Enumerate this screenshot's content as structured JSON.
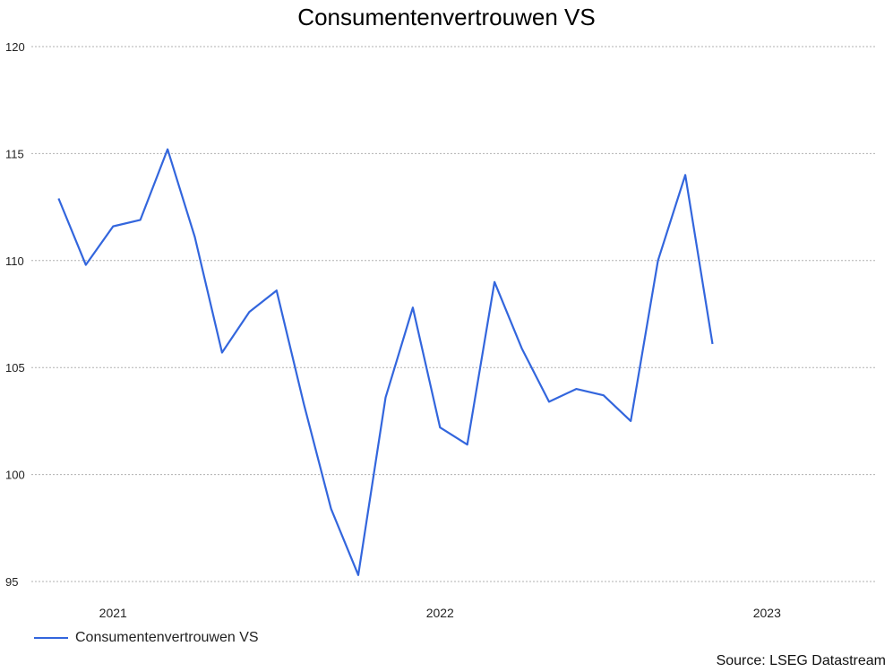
{
  "chart_data": {
    "type": "line",
    "title": "Consumentenvertrouwen VS",
    "xlabel": "",
    "ylabel": "",
    "ylim": [
      95,
      120
    ],
    "yticks": [
      95,
      100,
      105,
      110,
      115,
      120
    ],
    "xlim": [
      "2020-10",
      "2023-05"
    ],
    "xticks": [
      {
        "label": "2021",
        "date": "2021-01"
      },
      {
        "label": "2022",
        "date": "2022-01"
      },
      {
        "label": "2023",
        "date": "2023-01"
      }
    ],
    "grid": true,
    "legend": "bottom-left",
    "series": [
      {
        "name": "Consumentenvertrouwen VS",
        "color": "#3366dd",
        "points": [
          {
            "x": "2020-11",
            "y": 112.9
          },
          {
            "x": "2020-12",
            "y": 109.8
          },
          {
            "x": "2021-01",
            "y": 111.6
          },
          {
            "x": "2021-02",
            "y": 111.9
          },
          {
            "x": "2021-03",
            "y": 115.2
          },
          {
            "x": "2021-04",
            "y": 111.1
          },
          {
            "x": "2021-05",
            "y": 105.7
          },
          {
            "x": "2021-06",
            "y": 107.6
          },
          {
            "x": "2021-07",
            "y": 108.6
          },
          {
            "x": "2021-08",
            "y": 103.3
          },
          {
            "x": "2021-09",
            "y": 98.4
          },
          {
            "x": "2021-10",
            "y": 95.3
          },
          {
            "x": "2021-11",
            "y": 103.6
          },
          {
            "x": "2021-12",
            "y": 107.8
          },
          {
            "x": "2022-01",
            "y": 102.2
          },
          {
            "x": "2022-02",
            "y": 101.4
          },
          {
            "x": "2022-03",
            "y": 109.0
          },
          {
            "x": "2022-04",
            "y": 105.9
          },
          {
            "x": "2022-05",
            "y": 103.4
          },
          {
            "x": "2022-06",
            "y": 104.0
          },
          {
            "x": "2022-07",
            "y": 103.7
          },
          {
            "x": "2022-08",
            "y": 102.5
          },
          {
            "x": "2022-09",
            "y": 110.0
          },
          {
            "x": "2022-10",
            "y": 114.0
          },
          {
            "x": "2022-11",
            "y": 106.1
          }
        ]
      }
    ]
  },
  "source": "Source: LSEG Datastream"
}
